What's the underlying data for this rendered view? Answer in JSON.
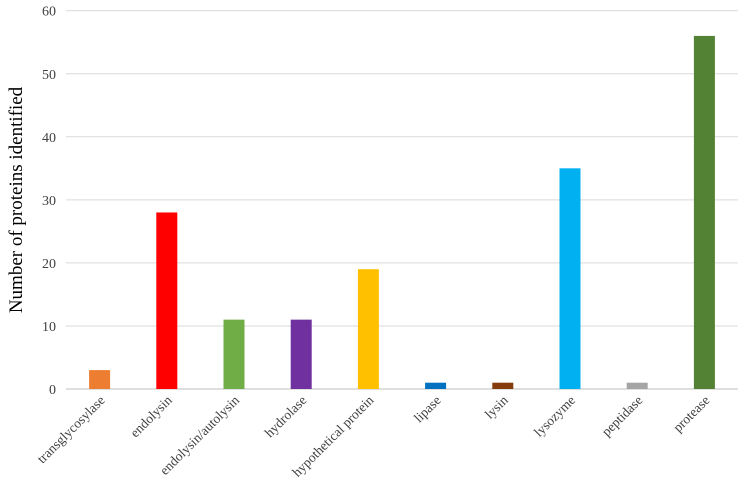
{
  "chart_data": {
    "type": "bar",
    "title": "",
    "xlabel": "",
    "ylabel": "Number of proteins identified",
    "ylim": [
      0,
      60
    ],
    "yticks": [
      0,
      10,
      20,
      30,
      40,
      50,
      60
    ],
    "grid": true,
    "categories": [
      "transglycosylase",
      "endolysin",
      "endolysin/autolysin",
      "hydrolase",
      "hypothetical protein",
      "lipase",
      "lysin",
      "lysozyme",
      "peptidase",
      "protease"
    ],
    "values": [
      3,
      28,
      11,
      11,
      19,
      1,
      1,
      35,
      1,
      56
    ],
    "colors": [
      "#ED7D31",
      "#FF0000",
      "#70AD47",
      "#7030A0",
      "#FFC000",
      "#0070C0",
      "#843C0C",
      "#00B0F0",
      "#A5A5A5",
      "#548235"
    ]
  }
}
